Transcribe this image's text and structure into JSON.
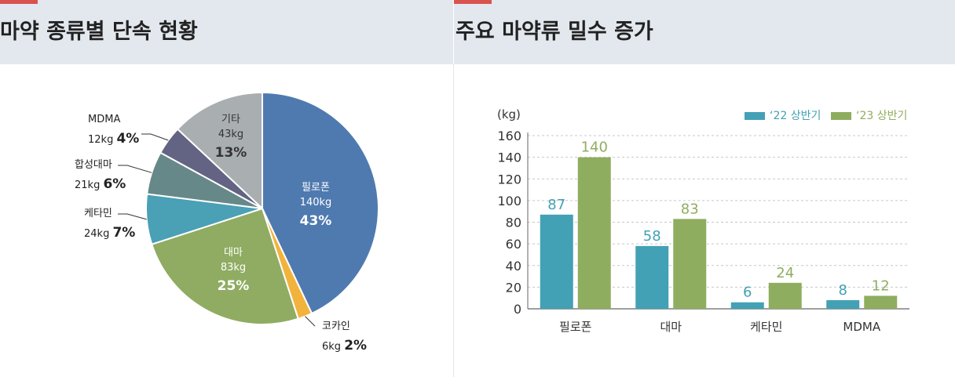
{
  "left": {
    "title": "마약 종류별 단속 현황",
    "chart_data": {
      "type": "pie",
      "slices": [
        {
          "name": "필로폰",
          "weight": "140kg",
          "percent": 43,
          "percent_label": "43%",
          "color": "#4f7aaf"
        },
        {
          "name": "코카인",
          "weight": "6kg",
          "percent": 2,
          "percent_label": "2%",
          "color": "#f2b33d"
        },
        {
          "name": "대마",
          "weight": "83kg",
          "percent": 25,
          "percent_label": "25%",
          "color": "#8fac62"
        },
        {
          "name": "케타민",
          "weight": "24kg",
          "percent": 7,
          "percent_label": "7%",
          "color": "#4aa0b5"
        },
        {
          "name": "합성대마",
          "weight": "21kg",
          "percent": 6,
          "percent_label": "6%",
          "color": "#678888"
        },
        {
          "name": "MDMA",
          "weight": "12kg",
          "percent": 4,
          "percent_label": "4%",
          "color": "#636383"
        },
        {
          "name": "기타",
          "weight": "43kg",
          "percent": 13,
          "percent_label": "13%",
          "color": "#a9aeb1"
        }
      ]
    }
  },
  "right": {
    "title": "주요 마약류 밀수 증가",
    "chart_data": {
      "type": "bar",
      "ylabel": "(kg)",
      "ylim": [
        0,
        160
      ],
      "yticks": [
        0,
        20,
        40,
        60,
        80,
        100,
        120,
        140,
        160
      ],
      "grid": true,
      "legend_position": "top-right",
      "categories": [
        "필로폰",
        "대마",
        "케타민",
        "MDMA"
      ],
      "series": [
        {
          "name": "‘22 상반기",
          "values": [
            87,
            58,
            6,
            8
          ],
          "color": "#42a1b5"
        },
        {
          "name": "‘23 상반기",
          "values": [
            140,
            83,
            24,
            12
          ],
          "color": "#8fad5f"
        }
      ]
    }
  }
}
